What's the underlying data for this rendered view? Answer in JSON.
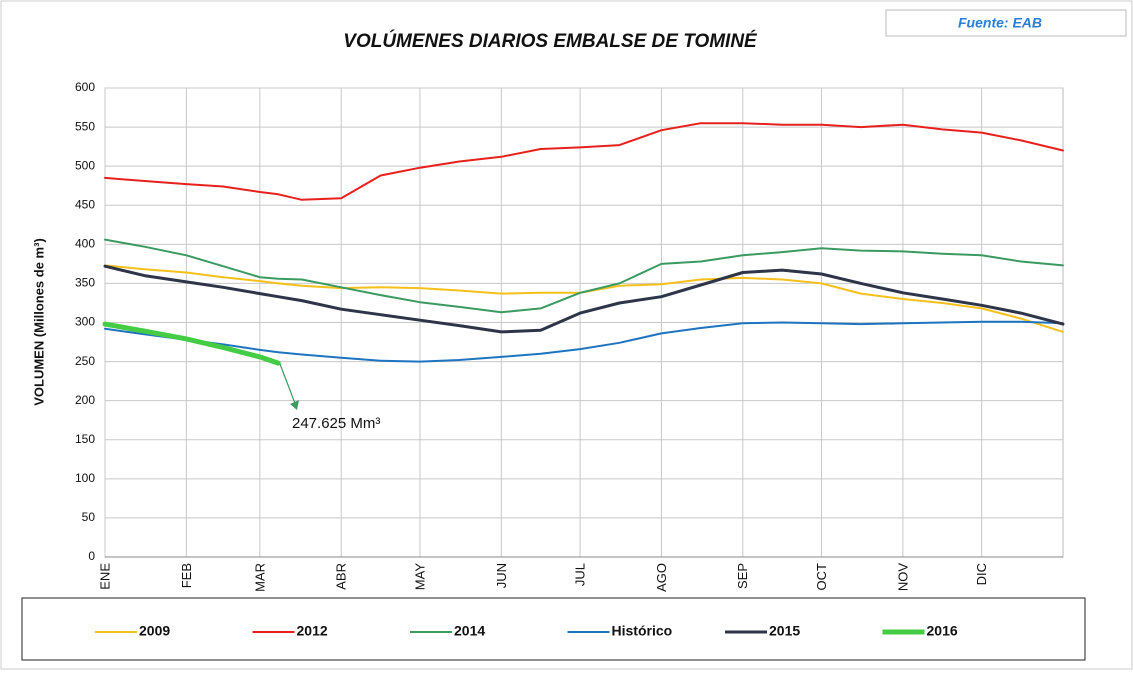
{
  "source": "Fuente: EAB",
  "chart_data": {
    "type": "line",
    "title": "VOLÚMENES DIARIOS EMBALSE DE TOMINÉ",
    "y_label": "VOLUMEN (Millones de m³)",
    "annotation": "247.625 Mm³",
    "x": [
      0,
      15,
      31,
      45,
      59,
      66,
      75,
      90,
      105,
      120,
      135,
      151,
      166,
      181,
      196,
      212,
      227,
      243,
      258,
      273,
      288,
      304,
      319,
      334,
      349,
      365
    ],
    "xlim": [
      0,
      365
    ],
    "xticks": [
      {
        "value": 0,
        "label": "ENE"
      },
      {
        "value": 31,
        "label": "FEB"
      },
      {
        "value": 59,
        "label": "MAR"
      },
      {
        "value": 90,
        "label": "ABR"
      },
      {
        "value": 120,
        "label": "MAY"
      },
      {
        "value": 151,
        "label": "JUN"
      },
      {
        "value": 181,
        "label": "JUL"
      },
      {
        "value": 212,
        "label": "AGO"
      },
      {
        "value": 243,
        "label": "SEP"
      },
      {
        "value": 273,
        "label": "OCT"
      },
      {
        "value": 304,
        "label": "NOV"
      },
      {
        "value": 334,
        "label": "DIC"
      }
    ],
    "ylim": [
      0,
      600
    ],
    "yticks": [
      0,
      50,
      100,
      150,
      200,
      250,
      300,
      350,
      400,
      450,
      500,
      550,
      600
    ],
    "grid": true,
    "series": [
      {
        "name": "2009",
        "color": "#f5c01a",
        "width": 2,
        "values": [
          373,
          368,
          364,
          358,
          353,
          350,
          347,
          344,
          345,
          344,
          341,
          337,
          338,
          338,
          347,
          349,
          355,
          357,
          355,
          350,
          337,
          330,
          325,
          318,
          305,
          288
        ]
      },
      {
        "name": "2012",
        "color": "#e8201c",
        "width": 2,
        "values": [
          485,
          481,
          477,
          474,
          467,
          464,
          457,
          459,
          488,
          498,
          506,
          512,
          522,
          524,
          527,
          546,
          555,
          555,
          553,
          553,
          550,
          553,
          547,
          543,
          533,
          520
        ]
      },
      {
        "name": "2014",
        "color": "#3a9a60",
        "width": 2,
        "values": [
          406,
          397,
          386,
          372,
          358,
          356,
          355,
          345,
          335,
          326,
          320,
          313,
          318,
          338,
          350,
          375,
          378,
          386,
          390,
          395,
          392,
          391,
          388,
          386,
          378,
          373
        ]
      },
      {
        "name": "Histórico",
        "color": "#1f74c0",
        "width": 2,
        "values": [
          292,
          285,
          278,
          272,
          265,
          262,
          259,
          255,
          251,
          250,
          252,
          256,
          260,
          266,
          274,
          286,
          293,
          299,
          300,
          299,
          298,
          299,
          300,
          301,
          301,
          299
        ]
      },
      {
        "name": "2015",
        "color": "#2e3548",
        "width": 3,
        "values": [
          372,
          360,
          352,
          345,
          337,
          333,
          328,
          317,
          310,
          303,
          296,
          288,
          290,
          312,
          325,
          333,
          348,
          364,
          367,
          362,
          350,
          338,
          330,
          322,
          312,
          298
        ]
      },
      {
        "name": "2016",
        "color": "#44cc44",
        "width": 5,
        "values": [
          298,
          289,
          279,
          268,
          256,
          248,
          null,
          null,
          null,
          null,
          null,
          null,
          null,
          null,
          null,
          null,
          null,
          null,
          null,
          null,
          null,
          null,
          null,
          null,
          null,
          null
        ]
      }
    ]
  }
}
